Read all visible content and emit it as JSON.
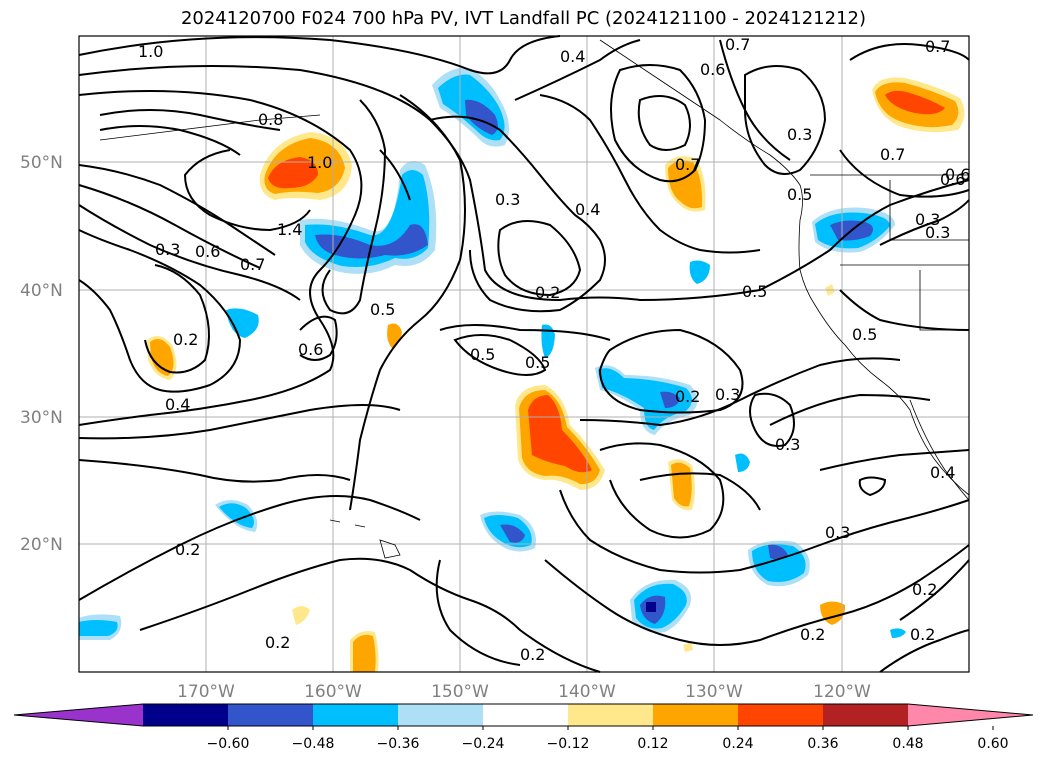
{
  "title": "2024120700 F024 700 hPa PV, IVT Landfall PC (2024121100 - 2024121212)",
  "lat_labels": [
    "50°N",
    "40°N",
    "30°N",
    "20°N"
  ],
  "lon_labels": [
    "170°W",
    "160°W",
    "150°W",
    "140°W",
    "130°W",
    "120°W"
  ],
  "colorbar": {
    "colors": [
      "#9933CC",
      "#00008B",
      "#3355CC",
      "#00BFFF",
      "#ADDFF7",
      "#FFFFFF",
      "#FFE88C",
      "#FFA500",
      "#FF4500",
      "#B22222",
      "#FF88AA"
    ],
    "ticks": [
      "−0.60",
      "−0.48",
      "−0.36",
      "−0.24",
      "−0.12",
      "0.12",
      "0.24",
      "0.36",
      "0.48",
      "0.60"
    ]
  },
  "contour_labels": [
    "1.0",
    "0.4",
    "0.7",
    "0.6",
    "0.7",
    "0.8",
    "1.0",
    "0.3",
    "0.7",
    "0.3",
    "0.4",
    "0.6",
    "1.4",
    "0.3",
    "0.6",
    "0.7",
    "0.3",
    "0.2",
    "0.5",
    "0.5",
    "0.5",
    "0.5",
    "0.2",
    "0.6",
    "0.5",
    "0.4",
    "0.2",
    "0.3",
    "0.3",
    "0.4",
    "0.3",
    "0.2",
    "0.2",
    "0.2",
    "0.2",
    "0.2",
    "0.2",
    "0.7",
    "0.6",
    "0.3",
    "0.5"
  ]
}
